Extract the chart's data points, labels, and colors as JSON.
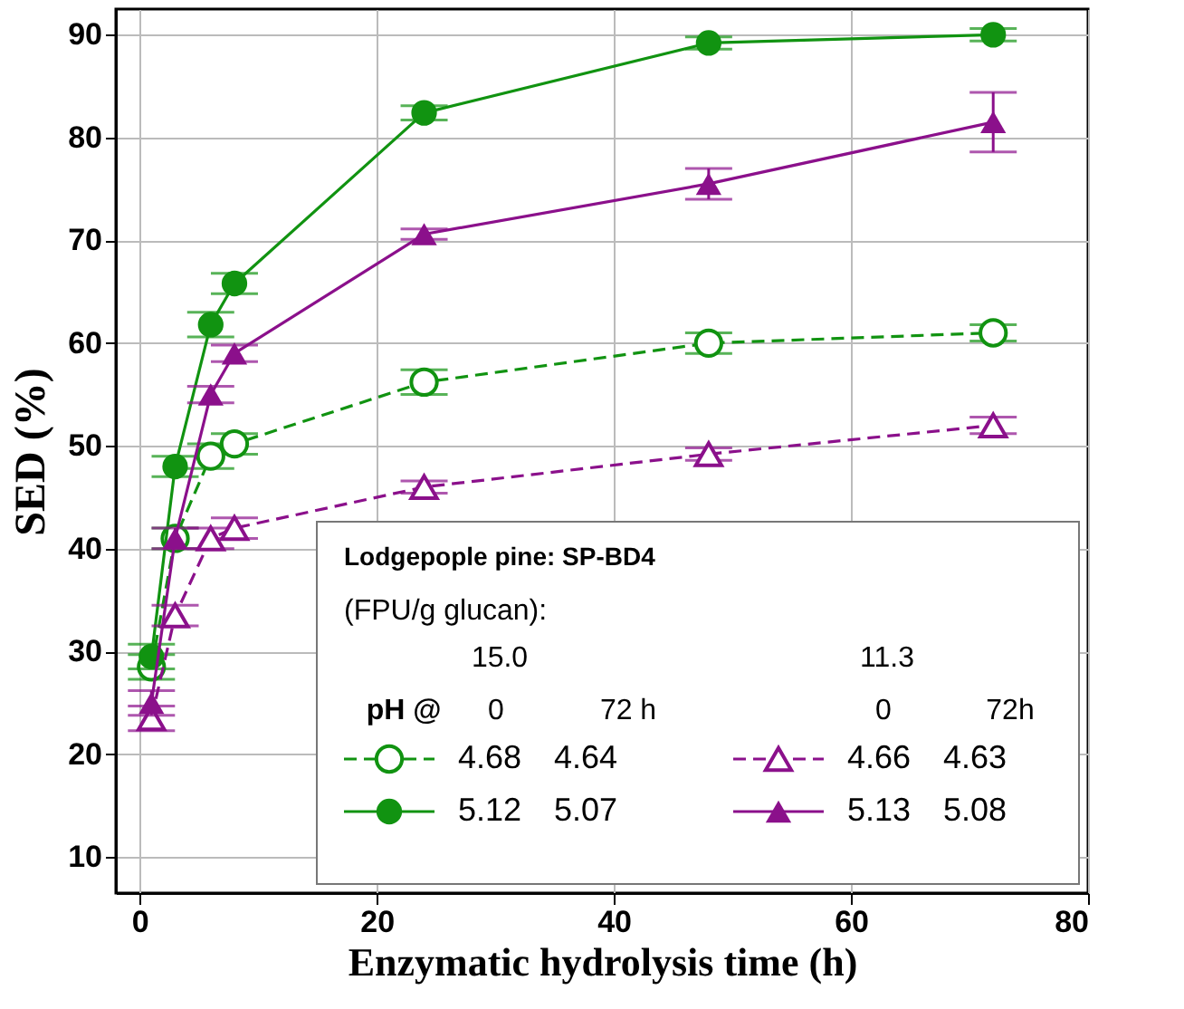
{
  "chart_data": {
    "type": "line",
    "xlabel": "Enzymatic hydrolysis time (h)",
    "ylabel": "SED (%)",
    "x": [
      1,
      3,
      6,
      8,
      24,
      48,
      72
    ],
    "series": [
      {
        "name": "4.68 4.64",
        "color": "#119311",
        "marker": "circle",
        "line_style": "dashed",
        "values": [
          28.5,
          41,
          49,
          50.2,
          56.2,
          60,
          61
        ],
        "errors": [
          1.2,
          1,
          1.2,
          1,
          1.2,
          1,
          0.8
        ]
      },
      {
        "name": "5.12 5.07",
        "color": "#119311",
        "marker": "circle",
        "line_style": "solid",
        "values": [
          29.5,
          48,
          61.8,
          65.8,
          82.4,
          89.2,
          90
        ],
        "errors": [
          1.2,
          1,
          1.2,
          1,
          0.7,
          0.6,
          0.6
        ]
      },
      {
        "name": "4.66 4.63",
        "color": "#8b108b",
        "marker": "triangle",
        "line_style": "dashed",
        "values": [
          23.5,
          33.5,
          41,
          42,
          46,
          49.2,
          52
        ],
        "errors": [
          1.2,
          1,
          1,
          1,
          0.6,
          0.6,
          0.8
        ]
      },
      {
        "name": "5.13 5.08",
        "color": "#8b108b",
        "marker": "triangle",
        "line_style": "solid",
        "values": [
          25,
          41,
          55,
          59,
          70.6,
          75.5,
          81.5
        ],
        "errors": [
          1.2,
          1,
          0.8,
          0.8,
          0.5,
          1.5,
          2.9
        ]
      }
    ],
    "legend_title": "Lodgepople pine: SP-BD4",
    "annotations": [
      "(FPU/g glucan):",
      "15.0",
      "11.3",
      "pH @",
      "0",
      "72 h",
      "0",
      "72h"
    ],
    "legend": "bottom right",
    "grid": true,
    "xlim": [
      -2,
      80
    ],
    "xticks": [
      0,
      20,
      40,
      60,
      80
    ],
    "ylim": [
      6.5,
      92.5
    ],
    "yticks": [
      10,
      20,
      30,
      40,
      50,
      60,
      70,
      80,
      90
    ]
  }
}
